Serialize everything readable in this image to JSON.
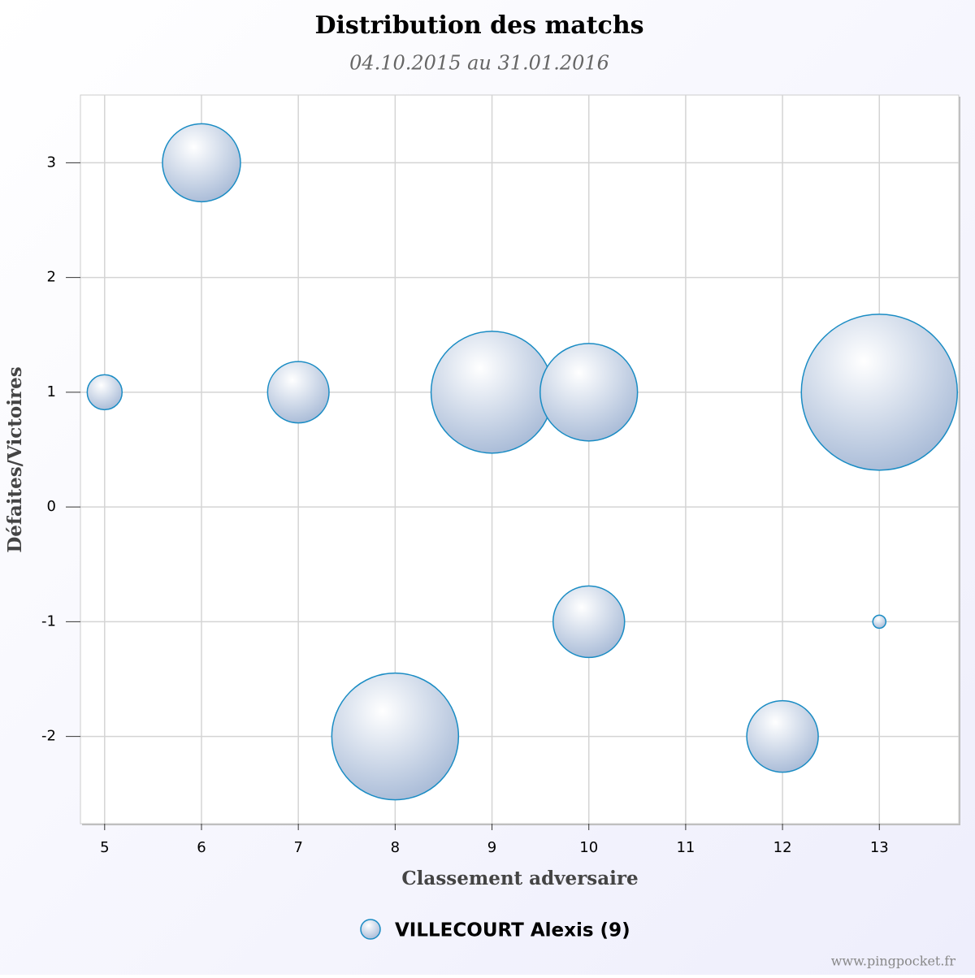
{
  "chart_data": {
    "type": "bubble",
    "title": "Distribution des matchs",
    "subtitle": "04.10.2015 au 31.01.2016",
    "x_label": "Classement adversaire",
    "y_label": "Défaites/Victoires",
    "credit": "www.pingpocket.fr",
    "xlim": [
      4.75,
      13.82
    ],
    "ylim": [
      -2.76,
      3.59
    ],
    "xticks": [
      5,
      6,
      7,
      8,
      9,
      10,
      11,
      12,
      13
    ],
    "yticks": [
      -2,
      -1,
      0,
      1,
      2,
      3
    ],
    "grid": true,
    "legend_position": "bottom",
    "series": [
      {
        "name": "VILLECOURT Alexis (9)",
        "color": "#1a8cc4",
        "x": [
          5,
          6,
          7,
          8,
          9,
          10,
          10,
          12,
          13,
          13
        ],
        "values": [
          1,
          3,
          1,
          -2,
          1,
          1,
          -1,
          -2,
          1,
          -1
        ],
        "sizes": [
          1,
          5,
          3.1,
          13.2,
          12.2,
          7.8,
          4.2,
          4.2,
          20,
          0.14
        ]
      }
    ]
  }
}
